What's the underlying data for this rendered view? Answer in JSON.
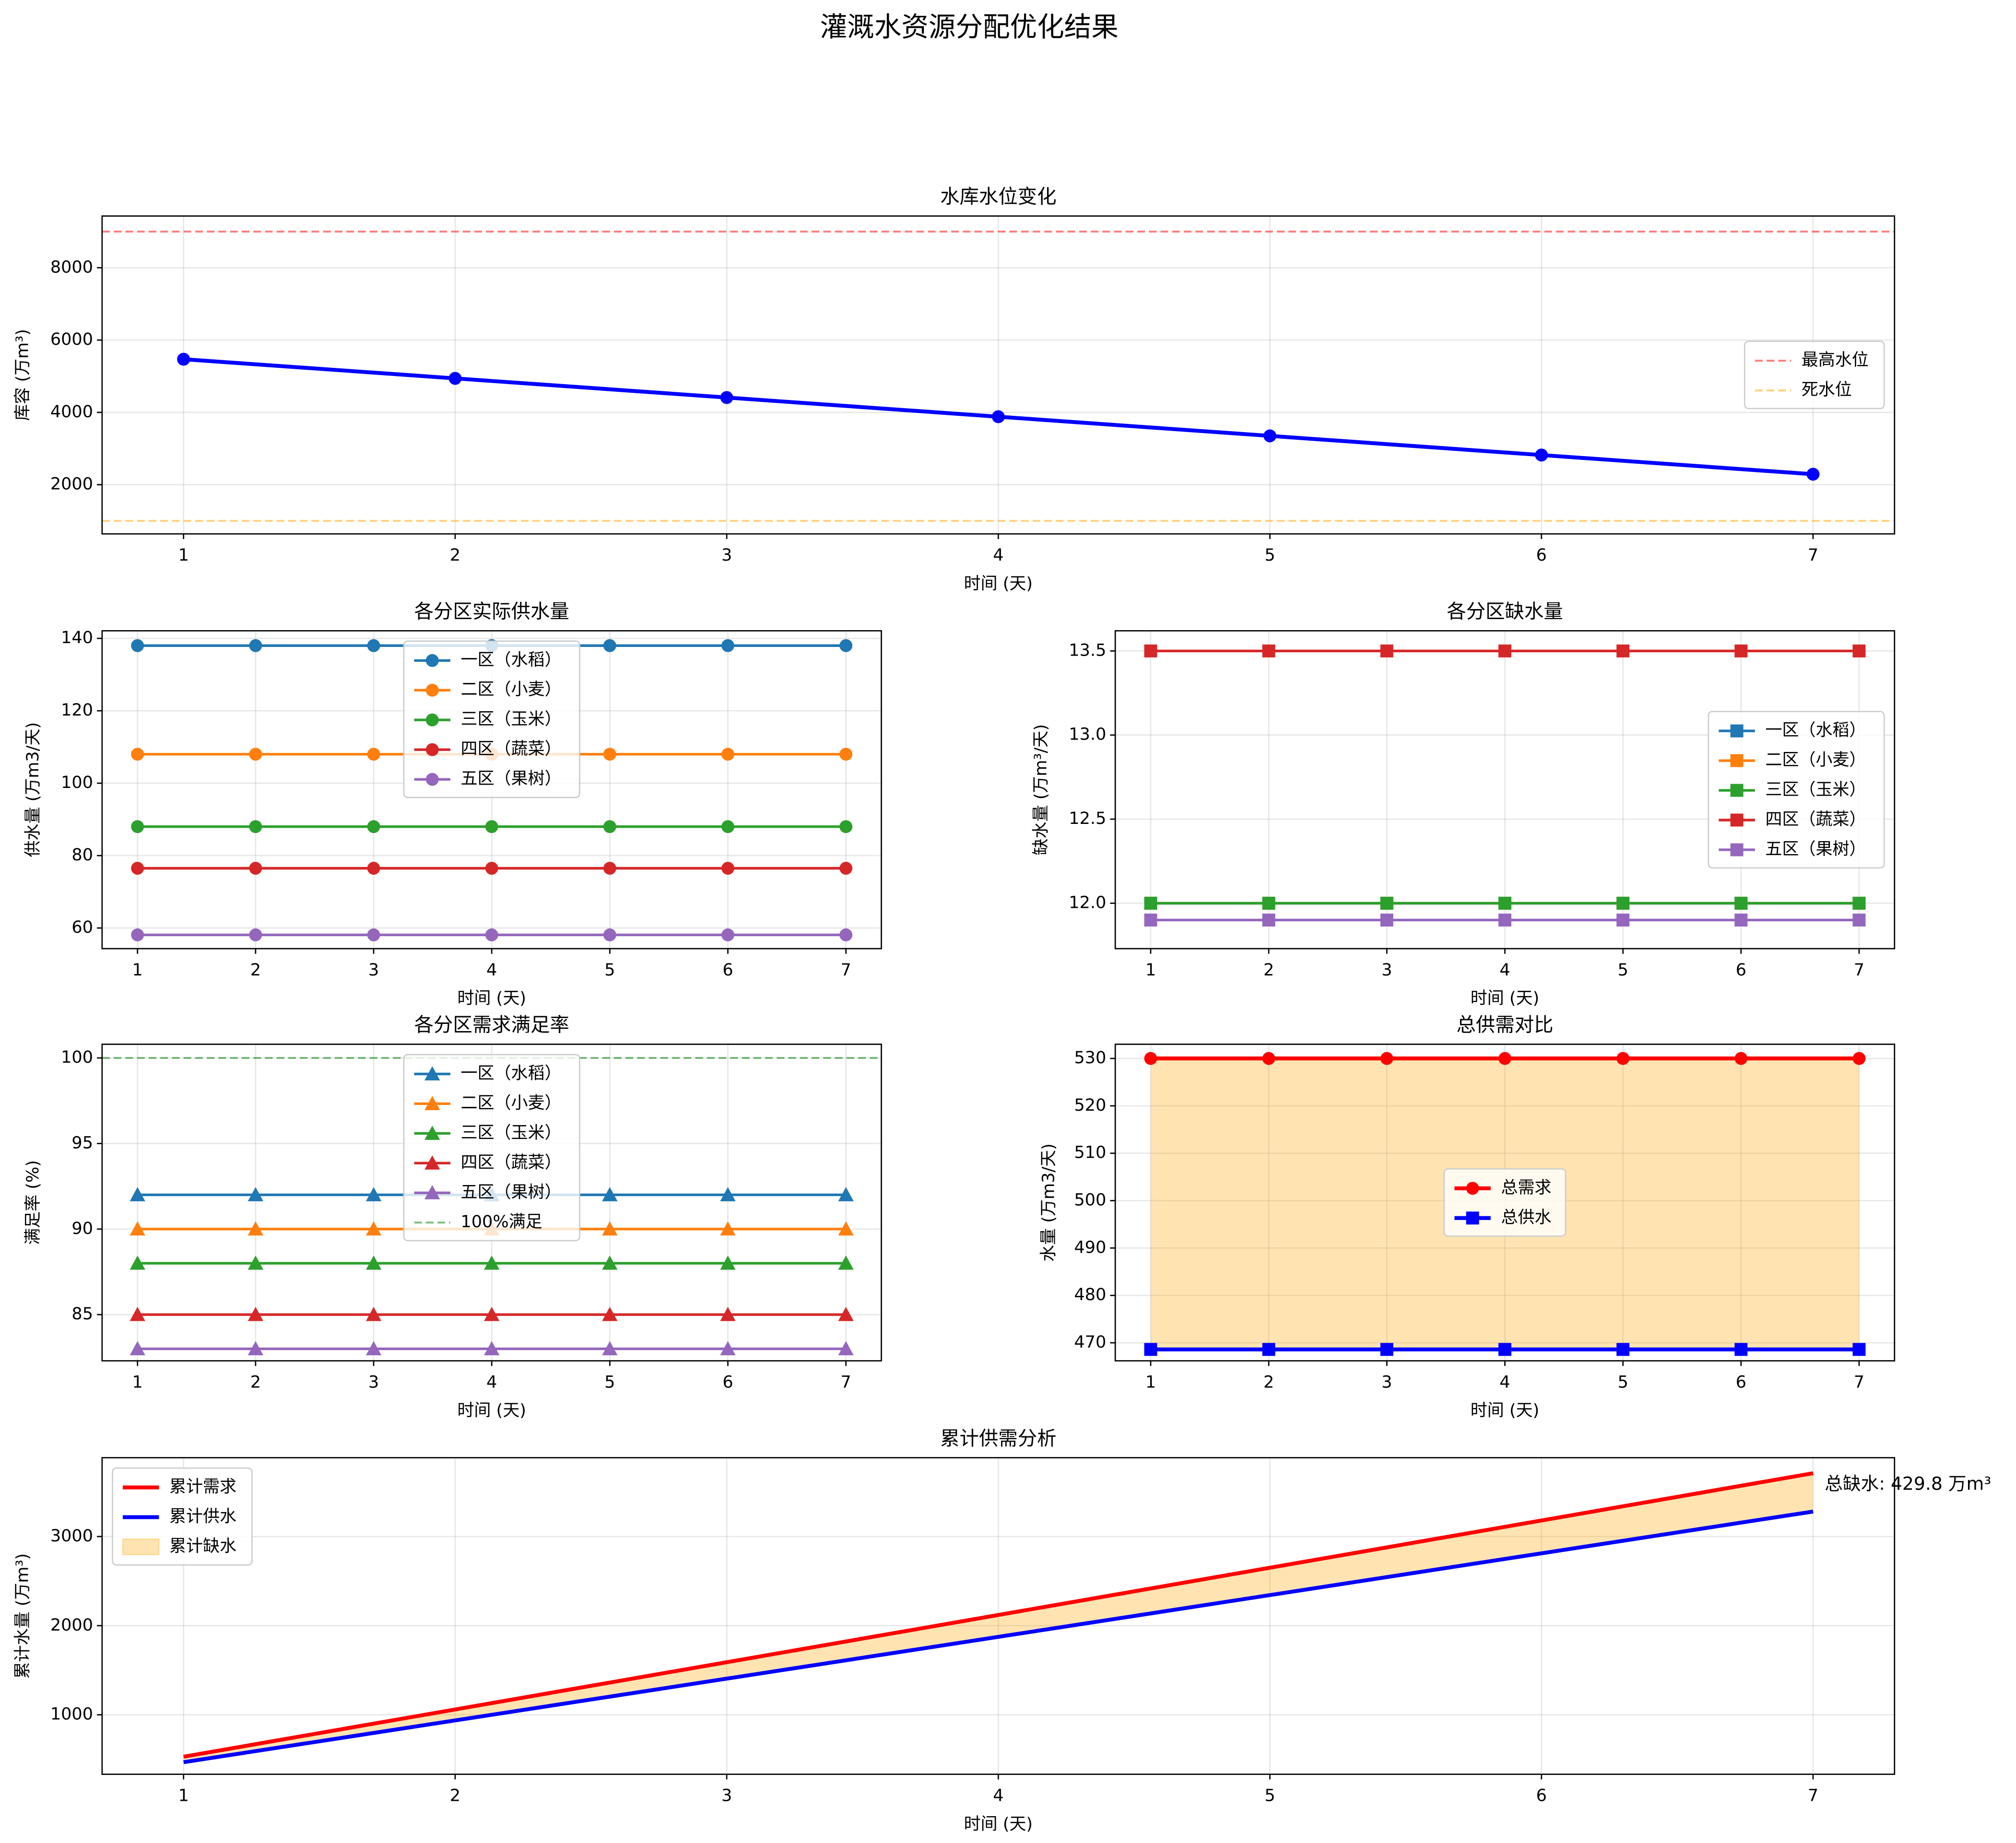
{
  "title": "灌溉水资源分配优化结果",
  "chart_data": [
    {
      "type": "line",
      "title": "水库水位变化",
      "xlabel": "时间 (天)",
      "ylabel": "库容 (万m³)",
      "x": [
        1,
        2,
        3,
        4,
        5,
        6,
        7
      ],
      "xlim": [
        0.7,
        7.3
      ],
      "xticks": [
        1,
        2,
        3,
        4,
        5,
        6,
        7
      ],
      "ylim": [
        640,
        9430
      ],
      "yticks": [
        2000,
        4000,
        6000,
        8000
      ],
      "grid": true,
      "legend": "center right",
      "series": [
        {
          "color": "#0000ff",
          "marker": "circle",
          "line_width": 3,
          "values": [
            5470,
            4940,
            4410,
            3880,
            3350,
            2820,
            2290
          ]
        }
      ],
      "hlines": [
        {
          "name": "最高水位",
          "value": 9000,
          "color": "#ff0000",
          "alpha": 0.5
        },
        {
          "name": "死水位",
          "value": 1000,
          "color": "#ffa500",
          "alpha": 0.5
        }
      ]
    },
    {
      "type": "line",
      "title": "各分区实际供水量",
      "xlabel": "时间 (天)",
      "ylabel": "供水量 (万m3/天)",
      "x": [
        1,
        2,
        3,
        4,
        5,
        6,
        7
      ],
      "xlim": [
        0.7,
        7.3
      ],
      "xticks": [
        1,
        2,
        3,
        4,
        5,
        6,
        7
      ],
      "ylim": [
        54.3,
        142.1
      ],
      "yticks": [
        60,
        80,
        100,
        120,
        140
      ],
      "grid": true,
      "legend": "upper center",
      "series": [
        {
          "name": "一区（水稻）",
          "color": "#1f77b4",
          "marker": "circle",
          "line_width": 2,
          "values": [
            138,
            138,
            138,
            138,
            138,
            138,
            138
          ]
        },
        {
          "name": "二区（小麦）",
          "color": "#ff7f0e",
          "marker": "circle",
          "line_width": 2,
          "values": [
            108,
            108,
            108,
            108,
            108,
            108,
            108
          ]
        },
        {
          "name": "三区（玉米）",
          "color": "#2ca02c",
          "marker": "circle",
          "line_width": 2,
          "values": [
            88,
            88,
            88,
            88,
            88,
            88,
            88
          ]
        },
        {
          "name": "四区（蔬菜）",
          "color": "#d62728",
          "marker": "circle",
          "line_width": 2,
          "values": [
            76.5,
            76.5,
            76.5,
            76.5,
            76.5,
            76.5,
            76.5
          ]
        },
        {
          "name": "五区（果树）",
          "color": "#9467bd",
          "marker": "circle",
          "line_width": 2,
          "values": [
            58.1,
            58.1,
            58.1,
            58.1,
            58.1,
            58.1,
            58.1
          ]
        }
      ]
    },
    {
      "type": "line",
      "title": "各分区缺水量",
      "xlabel": "时间 (天)",
      "ylabel": "缺水量 (万m³/天)",
      "x": [
        1,
        2,
        3,
        4,
        5,
        6,
        7
      ],
      "xlim": [
        0.7,
        7.3
      ],
      "xticks": [
        1,
        2,
        3,
        4,
        5,
        6,
        7
      ],
      "ylim": [
        11.73,
        13.62
      ],
      "yticks": [
        {
          "value": 12,
          "label": "12.0"
        },
        12.5,
        {
          "value": 13,
          "label": "13.0"
        },
        13.5
      ],
      "grid": true,
      "legend": "center right",
      "series": [
        {
          "name": "一区（水稻）",
          "color": "#1f77b4",
          "marker": "square",
          "line_width": 2,
          "values": [
            12,
            12,
            12,
            12,
            12,
            12,
            12
          ]
        },
        {
          "name": "二区（小麦）",
          "color": "#ff7f0e",
          "marker": "square",
          "line_width": 2,
          "values": [
            12,
            12,
            12,
            12,
            12,
            12,
            12
          ]
        },
        {
          "name": "三区（玉米）",
          "color": "#2ca02c",
          "marker": "square",
          "line_width": 2,
          "values": [
            12,
            12,
            12,
            12,
            12,
            12,
            12
          ]
        },
        {
          "name": "四区（蔬菜）",
          "color": "#d62728",
          "marker": "square",
          "line_width": 2,
          "values": [
            13.5,
            13.5,
            13.5,
            13.5,
            13.5,
            13.5,
            13.5
          ]
        },
        {
          "name": "五区（果树）",
          "color": "#9467bd",
          "marker": "square",
          "line_width": 2,
          "values": [
            11.9,
            11.9,
            11.9,
            11.9,
            11.9,
            11.9,
            11.9
          ]
        }
      ]
    },
    {
      "type": "line",
      "title": "各分区需求满足率",
      "xlabel": "时间 (天)",
      "ylabel": "满足率 (%)",
      "x": [
        1,
        2,
        3,
        4,
        5,
        6,
        7
      ],
      "xlim": [
        0.7,
        7.3
      ],
      "xticks": [
        1,
        2,
        3,
        4,
        5,
        6,
        7
      ],
      "ylim": [
        82.3,
        100.8
      ],
      "yticks": [
        85,
        90,
        95,
        100
      ],
      "grid": true,
      "legend": "upper center",
      "series": [
        {
          "name": "一区（水稻）",
          "color": "#1f77b4",
          "marker": "triangle",
          "line_width": 2,
          "values": [
            92,
            92,
            92,
            92,
            92,
            92,
            92
          ]
        },
        {
          "name": "二区（小麦）",
          "color": "#ff7f0e",
          "marker": "triangle",
          "line_width": 2,
          "values": [
            90,
            90,
            90,
            90,
            90,
            90,
            90
          ]
        },
        {
          "name": "三区（玉米）",
          "color": "#2ca02c",
          "marker": "triangle",
          "line_width": 2,
          "values": [
            88,
            88,
            88,
            88,
            88,
            88,
            88
          ]
        },
        {
          "name": "四区（蔬菜）",
          "color": "#d62728",
          "marker": "triangle",
          "line_width": 2,
          "values": [
            85,
            85,
            85,
            85,
            85,
            85,
            85
          ]
        },
        {
          "name": "五区（果树）",
          "color": "#9467bd",
          "marker": "triangle",
          "line_width": 2,
          "values": [
            83,
            83,
            83,
            83,
            83,
            83,
            83
          ]
        }
      ],
      "hlines": [
        {
          "name": "100%满足",
          "value": 100,
          "color": "#008000",
          "alpha": 0.5
        }
      ]
    },
    {
      "type": "line",
      "title": "总供需对比",
      "xlabel": "时间 (天)",
      "ylabel": "水量 (万m3/天)",
      "x": [
        1,
        2,
        3,
        4,
        5,
        6,
        7
      ],
      "xlim": [
        0.7,
        7.3
      ],
      "xticks": [
        1,
        2,
        3,
        4,
        5,
        6,
        7
      ],
      "ylim": [
        466.2,
        533
      ],
      "yticks": [
        470,
        480,
        490,
        500,
        510,
        520,
        530
      ],
      "grid": true,
      "legend": "center",
      "series": [
        {
          "name": "总需求",
          "color": "#ff0000",
          "marker": "circle",
          "line_width": 3,
          "values": [
            530,
            530,
            530,
            530,
            530,
            530,
            530
          ]
        },
        {
          "name": "总供水",
          "color": "#0000ff",
          "marker": "square",
          "line_width": 3,
          "values": [
            468.6,
            468.6,
            468.6,
            468.6,
            468.6,
            468.6,
            468.6
          ]
        }
      ],
      "fill_between": {
        "color": "#ffa500",
        "alpha": 0.3
      }
    },
    {
      "type": "line",
      "title": "累计供需分析",
      "xlabel": "时间 (天)",
      "ylabel": "累计水量 (万m³)",
      "x": [
        1,
        2,
        3,
        4,
        5,
        6,
        7
      ],
      "xlim": [
        0.7,
        7.3
      ],
      "xticks": [
        1,
        2,
        3,
        4,
        5,
        6,
        7
      ],
      "ylim": [
        333,
        3884
      ],
      "yticks": [
        1000,
        2000,
        3000
      ],
      "grid": true,
      "legend": "upper left",
      "series": [
        {
          "name": "累计需求",
          "color": "#ff0000",
          "line_width": 3,
          "values": [
            530,
            1060,
            1590,
            2120,
            2650,
            3180,
            3710
          ]
        },
        {
          "name": "累计供水",
          "color": "#0000ff",
          "line_width": 3,
          "values": [
            468.6,
            937.2,
            1405.8,
            1874.4,
            2343,
            2811.6,
            3280.2
          ]
        }
      ],
      "fill_between": {
        "name": "累计缺水",
        "color": "#ffa500",
        "alpha": 0.3
      },
      "annotation": "总缺水: 429.8 万m³"
    }
  ]
}
